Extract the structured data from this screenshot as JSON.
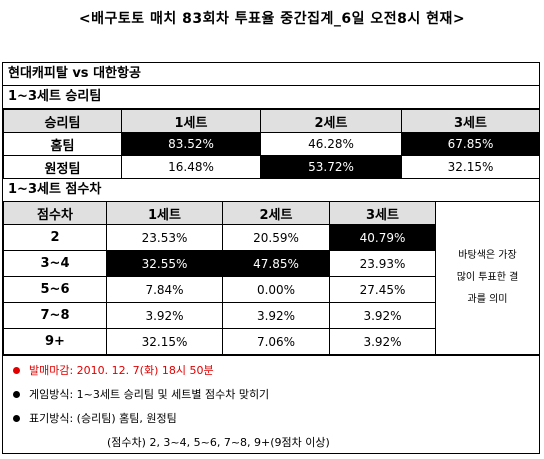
{
  "title": "<배구토토 매치 83회차 투표율 중간집계_6일 오전8시 현재>",
  "match": "현대캐피탈 vs 대한항공",
  "section1": {
    "heading": "1~3세트 승리팀",
    "col_header": "승리팀",
    "sets": [
      "1세트",
      "2세트",
      "3세트"
    ],
    "rows": [
      {
        "label": "홈팀",
        "values": [
          "83.52%",
          "46.28%",
          "67.85%"
        ],
        "highlight": [
          true,
          false,
          true
        ]
      },
      {
        "label": "원정팀",
        "values": [
          "16.48%",
          "53.72%",
          "32.15%"
        ],
        "highlight": [
          false,
          true,
          false
        ]
      }
    ]
  },
  "section2": {
    "heading": "1~3세트 점수차",
    "col_header": "점수차",
    "sets": [
      "1세트",
      "2세트",
      "3세트"
    ],
    "rows": [
      {
        "label": "2",
        "values": [
          "23.53%",
          "20.59%",
          "40.79%"
        ],
        "highlight": [
          false,
          false,
          true
        ]
      },
      {
        "label": "3~4",
        "values": [
          "32.55%",
          "47.85%",
          "23.93%"
        ],
        "highlight": [
          true,
          true,
          false
        ]
      },
      {
        "label": "5~6",
        "values": [
          "7.84%",
          "0.00%",
          "27.45%"
        ],
        "highlight": [
          false,
          false,
          false
        ]
      },
      {
        "label": "7~8",
        "values": [
          "3.92%",
          "3.92%",
          "3.92%"
        ],
        "highlight": [
          false,
          false,
          false
        ]
      },
      {
        "label": "9+",
        "values": [
          "32.15%",
          "7.06%",
          "3.92%"
        ],
        "highlight": [
          false,
          false,
          false
        ]
      }
    ],
    "note_lines": [
      "바탕색은 가장",
      "많이 투표한 결",
      "과를 의미"
    ]
  },
  "notes": {
    "deadline": "발매마감: 2010. 12. 7(화) 18시 50분",
    "method": "게임방식: 1~3세트 승리팀 및 세트별 점수차 맞히기",
    "notation": "표기방식: (승리팀) 홈팀, 원정팀",
    "notation2": "(점수차) 2, 3~4, 5~6, 7~8, 9+(9점차 이상)"
  },
  "colors": {
    "highlight_bg": "#000000",
    "header_bg": "#e0e0e0",
    "deadline": "#e00000"
  }
}
